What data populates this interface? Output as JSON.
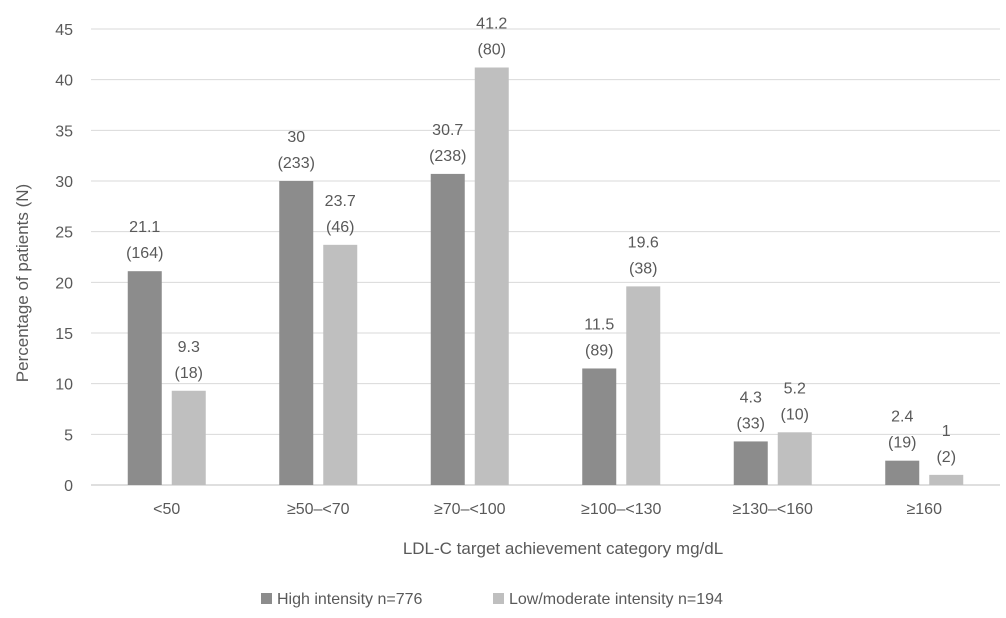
{
  "chart_data": {
    "type": "bar",
    "categories": [
      "<50",
      "≥50–<70",
      "≥70–<100",
      "≥100–<130",
      "≥130–<160",
      "≥160"
    ],
    "series": [
      {
        "name": "High intensity n=776",
        "color": "#8c8c8c",
        "values": [
          21.1,
          30,
          30.7,
          11.5,
          4.3,
          2.4
        ],
        "counts": [
          "(164)",
          "(233)",
          "(238)",
          "(89)",
          "(33)",
          "(19)"
        ]
      },
      {
        "name": "Low/moderate intensity n=194",
        "color": "#bfbfbf",
        "values": [
          9.3,
          23.7,
          41.2,
          19.6,
          5.2,
          1
        ],
        "counts": [
          "(18)",
          "(46)",
          "(80)",
          "(38)",
          "(10)",
          "(2)"
        ]
      }
    ],
    "xlabel": "LDL-C target achievement category mg/dL",
    "ylabel": "Percentage of patients (N)",
    "ylim": [
      0,
      45
    ],
    "yticks": [
      0,
      5,
      10,
      15,
      20,
      25,
      30,
      35,
      40,
      45
    ],
    "grid": true,
    "legend": "bottom"
  }
}
